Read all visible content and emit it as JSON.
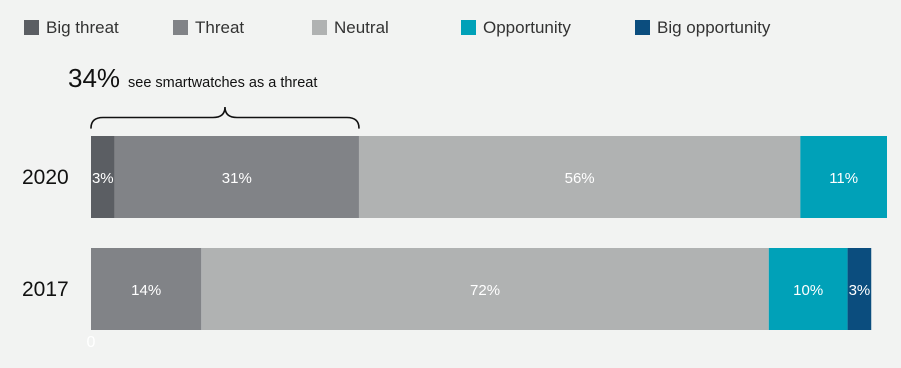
{
  "chart_data": {
    "type": "bar",
    "orientation": "horizontal",
    "stacked": true,
    "categories": [
      "2020",
      "2017"
    ],
    "series": [
      {
        "name": "Big threat",
        "color": "#5b5e63",
        "values": [
          3,
          0
        ]
      },
      {
        "name": "Threat",
        "color": "#818387",
        "values": [
          31,
          14
        ]
      },
      {
        "name": "Neutral",
        "color": "#b0b2b2",
        "values": [
          56,
          72
        ]
      },
      {
        "name": "Opportunity",
        "color": "#00a1b8",
        "values": [
          11,
          10
        ]
      },
      {
        "name": "Big opportunity",
        "color": "#0b4d7e",
        "values": [
          0,
          3
        ]
      }
    ],
    "value_labels": [
      [
        "3%",
        "31%",
        "56%",
        "11%",
        ""
      ],
      [
        "",
        "14%",
        "72%",
        "10%",
        "3%"
      ]
    ],
    "xlim": [
      0,
      101
    ],
    "axis_tick_label": "0",
    "legend_position": "top",
    "grid": false,
    "annotation": {
      "value": "34%",
      "text": "see smartwatches as a threat",
      "category": "2020",
      "span_series": [
        "Big threat",
        "Threat"
      ]
    }
  }
}
